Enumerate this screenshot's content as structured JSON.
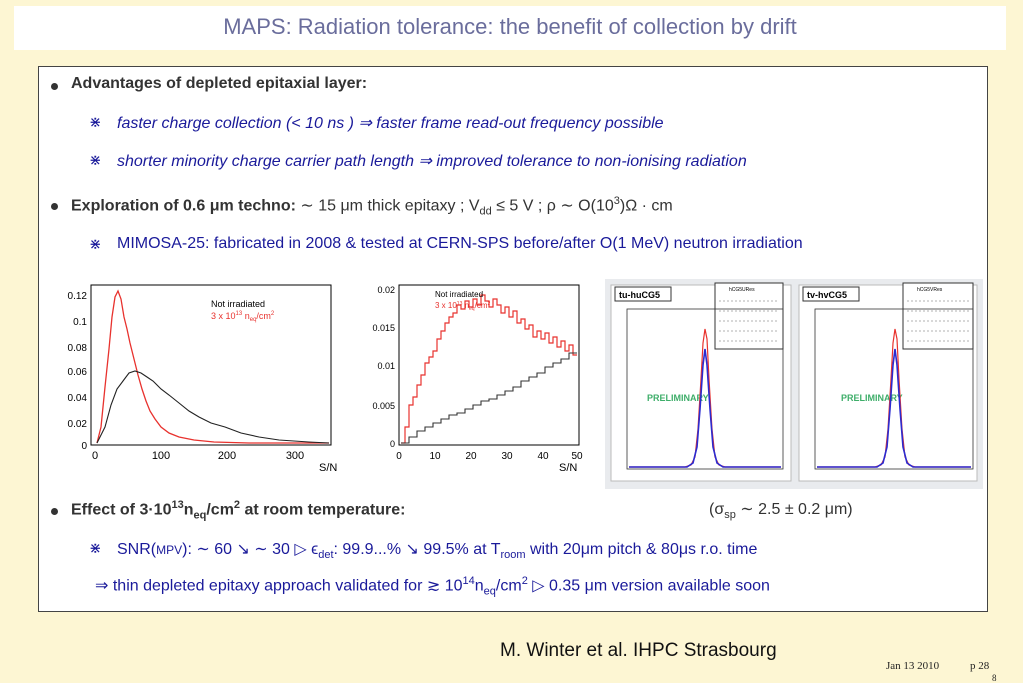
{
  "title": "MAPS: Radiation tolerance: the benefit of collection by drift",
  "section1": {
    "heading": "Advantages of depleted epitaxial layer:",
    "item1": "faster charge collection (< 10 ns ) ⇒  faster frame read-out frequency possible",
    "item2": "shorter minority charge carrier path length ⇒  improved tolerance to non-ionising radiation"
  },
  "section2": {
    "heading_bold": "Exploration of 0.6 μm techno:",
    "heading_rest": " ∼ 15 μm thick epitaxy ; V",
    "sub_dd": "dd",
    "heading_rest2": " ≤ 5 V ; ρ ∼ O(10",
    "sup3": "3",
    "heading_rest3": ")Ω · cm",
    "item1": "MIMOSA-25: fabricated in 2008 & tested at CERN-SPS before/after O(1 MeV) neutron irradiation"
  },
  "plot1": {
    "legend_black": "Not irradiated",
    "legend_red": "3 x 10",
    "legend_red_sup": "13",
    "legend_red_tail": " n",
    "legend_red_sub": "eq",
    "legend_red_end": "/cm",
    "legend_red_sup2": "2",
    "xlabel": "S/N",
    "yticks": [
      "0.12",
      "0.1",
      "0.08",
      "0.06",
      "0.04",
      "0.02",
      "0"
    ],
    "xticks": [
      "0",
      "100",
      "200",
      "300"
    ]
  },
  "plot2": {
    "legend_black": "Not irradiated",
    "legend_red": "3 x 10",
    "legend_red_sup": "13",
    "legend_red_tail": " n",
    "legend_red_sub": "eq",
    "legend_red_end": "/cm",
    "legend_red_sup2": "2",
    "xlabel": "S/N",
    "yticks": [
      "0.02",
      "0.015",
      "0.01",
      "0.005",
      "0"
    ],
    "xticks": [
      "0",
      "10",
      "20",
      "30",
      "40",
      "50"
    ]
  },
  "plot3": {
    "tab": "tu-huCG5",
    "stats": "hCG5URes",
    "watermark": "PRELIMINARY"
  },
  "plot4": {
    "tab": "tv-hvCG5",
    "stats": "hCG5VRes",
    "watermark": "PRELIMINARY"
  },
  "section3": {
    "heading_a": "Effect of 3·10",
    "heading_sup": "13",
    "heading_b": "n",
    "heading_sub": "eq",
    "heading_c": "/cm",
    "heading_sup2": "2",
    "heading_d": " at room temperature:",
    "sigma": "(σ",
    "sigma_sub": "sp",
    "sigma_rest": " ∼ 2.5 ± 0.2 μm)",
    "line1_a": "SNR(",
    "line1_mpv": "MPV",
    "line1_b": "): ∼ 60 ↘ ∼ 30  ▷  ϵ",
    "line1_sub": "det",
    "line1_c": ": 99.9...% ↘ 99.5% at T",
    "line1_sub2": "room",
    "line1_d": " with 20μm pitch & 80μs r.o. time",
    "line2_a": "⇒   thin depleted epitaxy approach validated for ≳ 10",
    "line2_sup": "14",
    "line2_b": "n",
    "line2_sub": "eq",
    "line2_c": "/cm",
    "line2_sup2": "2",
    "line2_d": "  ▷  0.35 μm version available soon"
  },
  "footer": {
    "author": "M. Winter et al. IHPC Strasbourg",
    "date": "Jan 13 2010",
    "page": "p 28",
    "page_overlap": "8"
  },
  "colors": {
    "title": "#6a6d9c",
    "background": "#fdf6d3",
    "red_series": "#e8322e",
    "blue_fit": "#2b2bd0"
  }
}
